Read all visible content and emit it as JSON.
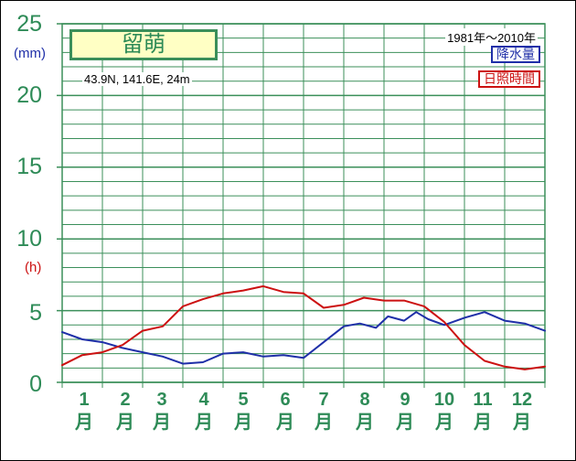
{
  "station": {
    "name": "留萌",
    "coords": "43.9N,  141.6E,  24m",
    "period": "1981年〜2010年"
  },
  "legend": {
    "precip": "降水量",
    "sunshine": "日照時間"
  },
  "units": {
    "left_top": "(mm)",
    "left_mid": "(h)"
  },
  "y_ticks": [
    "25",
    "20",
    "15",
    "10",
    "5",
    "0"
  ],
  "months": [
    {
      "num": "1",
      "kanji": "月"
    },
    {
      "num": "2",
      "kanji": "月"
    },
    {
      "num": "3",
      "kanji": "月"
    },
    {
      "num": "4",
      "kanji": "月"
    },
    {
      "num": "5",
      "kanji": "月"
    },
    {
      "num": "6",
      "kanji": "月"
    },
    {
      "num": "7",
      "kanji": "月"
    },
    {
      "num": "8",
      "kanji": "月"
    },
    {
      "num": "9",
      "kanji": "月"
    },
    {
      "num": "10",
      "kanji": "月"
    },
    {
      "num": "11",
      "kanji": "月"
    },
    {
      "num": "12",
      "kanji": "月"
    }
  ],
  "colors": {
    "grid": "#3b8f5a",
    "precip": "#1f2fa8",
    "sunshine": "#cc1111",
    "text_green": "#2e8b57"
  },
  "chart_data": {
    "type": "line",
    "ylim": [
      0,
      25
    ],
    "grid": true,
    "x_unit": "month (1 Jan – 12 Dec, continuous)",
    "series": [
      {
        "name": "降水量",
        "unit": "mm",
        "x": [
          0.5,
          1.0,
          1.5,
          2.0,
          2.5,
          3.0,
          3.5,
          4.0,
          4.5,
          5.0,
          5.5,
          6.0,
          6.5,
          7.0,
          7.5,
          7.9,
          8.3,
          8.6,
          9.0,
          9.3,
          9.6,
          10.0,
          10.5,
          11.0,
          11.5,
          12.0,
          12.5
        ],
        "y": [
          3.5,
          3.0,
          2.8,
          2.4,
          2.1,
          1.8,
          1.3,
          1.4,
          2.0,
          2.1,
          1.8,
          1.9,
          1.7,
          2.8,
          3.9,
          4.1,
          3.8,
          4.6,
          4.3,
          4.9,
          4.4,
          4.0,
          4.5,
          4.9,
          4.3,
          4.1,
          3.6
        ]
      },
      {
        "name": "日照時間",
        "unit": "h",
        "x": [
          0.5,
          1.0,
          1.5,
          2.0,
          2.5,
          3.0,
          3.5,
          4.0,
          4.5,
          5.0,
          5.5,
          6.0,
          6.5,
          7.0,
          7.5,
          8.0,
          8.5,
          9.0,
          9.5,
          10.0,
          10.5,
          11.0,
          11.5,
          12.0,
          12.5
        ],
        "y": [
          1.2,
          1.9,
          2.1,
          2.6,
          3.6,
          3.9,
          5.3,
          5.8,
          6.2,
          6.4,
          6.7,
          6.3,
          6.2,
          5.2,
          5.4,
          5.9,
          5.7,
          5.7,
          5.3,
          4.2,
          2.6,
          1.5,
          1.1,
          0.9,
          1.1
        ]
      }
    ]
  }
}
